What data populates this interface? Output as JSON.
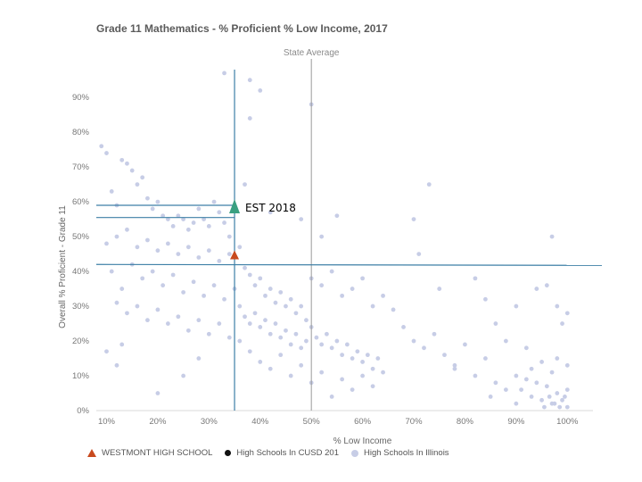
{
  "chart_data": {
    "type": "scatter",
    "title": "Grade 11 Mathematics - % Proficient % Low Income, 2017",
    "xlabel": "% Low Income",
    "ylabel": "Overall % Proficient - Grade 11",
    "xlim": [
      0.08,
      1.05
    ],
    "ylim": [
      0,
      0.98
    ],
    "x_ticks": [
      {
        "v": 0.1,
        "label": "10%"
      },
      {
        "v": 0.2,
        "label": "20%"
      },
      {
        "v": 0.3,
        "label": "30%"
      },
      {
        "v": 0.4,
        "label": "40%"
      },
      {
        "v": 0.5,
        "label": "50%"
      },
      {
        "v": 0.6,
        "label": "60%"
      },
      {
        "v": 0.7,
        "label": "70%"
      },
      {
        "v": 0.8,
        "label": "80%"
      },
      {
        "v": 0.9,
        "label": "90%"
      },
      {
        "v": 1.0,
        "label": "100%"
      }
    ],
    "y_ticks": [
      {
        "v": 0.0,
        "label": "0%"
      },
      {
        "v": 0.1,
        "label": "10%"
      },
      {
        "v": 0.2,
        "label": "20%"
      },
      {
        "v": 0.3,
        "label": "30%"
      },
      {
        "v": 0.4,
        "label": "40%"
      },
      {
        "v": 0.5,
        "label": "50%"
      },
      {
        "v": 0.6,
        "label": "60%"
      },
      {
        "v": 0.7,
        "label": "70%"
      },
      {
        "v": 0.8,
        "label": "80%"
      },
      {
        "v": 0.9,
        "label": "90%"
      }
    ],
    "state_average": {
      "label": "State Average",
      "x": 0.5
    },
    "reference_lines": {
      "vertical_x": 0.35,
      "horizontal_y": [
        0.59,
        0.555,
        0.42
      ]
    },
    "series": [
      {
        "name": "High Schools In Illinois",
        "color": "#c7cde6",
        "points": [
          [
            0.09,
            0.76
          ],
          [
            0.1,
            0.74
          ],
          [
            0.11,
            0.63
          ],
          [
            0.12,
            0.59
          ],
          [
            0.13,
            0.72
          ],
          [
            0.14,
            0.71
          ],
          [
            0.15,
            0.69
          ],
          [
            0.16,
            0.65
          ],
          [
            0.17,
            0.67
          ],
          [
            0.18,
            0.61
          ],
          [
            0.19,
            0.58
          ],
          [
            0.2,
            0.6
          ],
          [
            0.21,
            0.56
          ],
          [
            0.22,
            0.55
          ],
          [
            0.23,
            0.53
          ],
          [
            0.24,
            0.56
          ],
          [
            0.25,
            0.55
          ],
          [
            0.26,
            0.52
          ],
          [
            0.27,
            0.54
          ],
          [
            0.28,
            0.58
          ],
          [
            0.29,
            0.55
          ],
          [
            0.3,
            0.53
          ],
          [
            0.31,
            0.6
          ],
          [
            0.32,
            0.57
          ],
          [
            0.33,
            0.54
          ],
          [
            0.34,
            0.5
          ],
          [
            0.1,
            0.48
          ],
          [
            0.12,
            0.5
          ],
          [
            0.14,
            0.52
          ],
          [
            0.16,
            0.47
          ],
          [
            0.18,
            0.49
          ],
          [
            0.2,
            0.46
          ],
          [
            0.22,
            0.48
          ],
          [
            0.24,
            0.45
          ],
          [
            0.26,
            0.47
          ],
          [
            0.28,
            0.44
          ],
          [
            0.3,
            0.46
          ],
          [
            0.32,
            0.43
          ],
          [
            0.34,
            0.45
          ],
          [
            0.11,
            0.4
          ],
          [
            0.13,
            0.35
          ],
          [
            0.15,
            0.42
          ],
          [
            0.17,
            0.38
          ],
          [
            0.19,
            0.4
          ],
          [
            0.21,
            0.36
          ],
          [
            0.23,
            0.39
          ],
          [
            0.25,
            0.34
          ],
          [
            0.27,
            0.37
          ],
          [
            0.29,
            0.33
          ],
          [
            0.31,
            0.36
          ],
          [
            0.33,
            0.32
          ],
          [
            0.35,
            0.35
          ],
          [
            0.12,
            0.31
          ],
          [
            0.14,
            0.28
          ],
          [
            0.16,
            0.3
          ],
          [
            0.18,
            0.26
          ],
          [
            0.2,
            0.29
          ],
          [
            0.22,
            0.25
          ],
          [
            0.24,
            0.27
          ],
          [
            0.26,
            0.23
          ],
          [
            0.28,
            0.26
          ],
          [
            0.3,
            0.22
          ],
          [
            0.32,
            0.25
          ],
          [
            0.34,
            0.21
          ],
          [
            0.1,
            0.17
          ],
          [
            0.12,
            0.13
          ],
          [
            0.13,
            0.19
          ],
          [
            0.2,
            0.05
          ],
          [
            0.25,
            0.1
          ],
          [
            0.28,
            0.15
          ],
          [
            0.33,
            0.97
          ],
          [
            0.38,
            0.95
          ],
          [
            0.4,
            0.92
          ],
          [
            0.38,
            0.84
          ],
          [
            0.5,
            0.88
          ],
          [
            0.37,
            0.65
          ],
          [
            0.42,
            0.57
          ],
          [
            0.48,
            0.55
          ],
          [
            0.52,
            0.5
          ],
          [
            0.55,
            0.56
          ],
          [
            0.36,
            0.47
          ],
          [
            0.37,
            0.41
          ],
          [
            0.38,
            0.39
          ],
          [
            0.39,
            0.36
          ],
          [
            0.4,
            0.38
          ],
          [
            0.41,
            0.33
          ],
          [
            0.42,
            0.35
          ],
          [
            0.43,
            0.31
          ],
          [
            0.44,
            0.34
          ],
          [
            0.45,
            0.3
          ],
          [
            0.46,
            0.32
          ],
          [
            0.47,
            0.28
          ],
          [
            0.48,
            0.3
          ],
          [
            0.49,
            0.26
          ],
          [
            0.36,
            0.3
          ],
          [
            0.37,
            0.27
          ],
          [
            0.38,
            0.25
          ],
          [
            0.39,
            0.28
          ],
          [
            0.4,
            0.24
          ],
          [
            0.41,
            0.26
          ],
          [
            0.42,
            0.22
          ],
          [
            0.43,
            0.25
          ],
          [
            0.44,
            0.21
          ],
          [
            0.45,
            0.23
          ],
          [
            0.46,
            0.19
          ],
          [
            0.47,
            0.22
          ],
          [
            0.48,
            0.18
          ],
          [
            0.49,
            0.2
          ],
          [
            0.5,
            0.24
          ],
          [
            0.51,
            0.21
          ],
          [
            0.52,
            0.19
          ],
          [
            0.53,
            0.22
          ],
          [
            0.54,
            0.18
          ],
          [
            0.55,
            0.2
          ],
          [
            0.56,
            0.16
          ],
          [
            0.57,
            0.19
          ],
          [
            0.58,
            0.15
          ],
          [
            0.59,
            0.17
          ],
          [
            0.6,
            0.14
          ],
          [
            0.61,
            0.16
          ],
          [
            0.62,
            0.12
          ],
          [
            0.63,
            0.15
          ],
          [
            0.64,
            0.11
          ],
          [
            0.36,
            0.2
          ],
          [
            0.38,
            0.17
          ],
          [
            0.4,
            0.14
          ],
          [
            0.42,
            0.12
          ],
          [
            0.44,
            0.16
          ],
          [
            0.46,
            0.1
          ],
          [
            0.48,
            0.13
          ],
          [
            0.5,
            0.08
          ],
          [
            0.52,
            0.11
          ],
          [
            0.54,
            0.04
          ],
          [
            0.56,
            0.09
          ],
          [
            0.58,
            0.06
          ],
          [
            0.6,
            0.1
          ],
          [
            0.62,
            0.07
          ],
          [
            0.5,
            0.38
          ],
          [
            0.52,
            0.36
          ],
          [
            0.54,
            0.4
          ],
          [
            0.56,
            0.33
          ],
          [
            0.58,
            0.35
          ],
          [
            0.6,
            0.38
          ],
          [
            0.62,
            0.3
          ],
          [
            0.64,
            0.33
          ],
          [
            0.66,
            0.29
          ],
          [
            0.68,
            0.24
          ],
          [
            0.7,
            0.2
          ],
          [
            0.72,
            0.18
          ],
          [
            0.74,
            0.22
          ],
          [
            0.76,
            0.16
          ],
          [
            0.78,
            0.13
          ],
          [
            0.8,
            0.19
          ],
          [
            0.82,
            0.1
          ],
          [
            0.84,
            0.15
          ],
          [
            0.86,
            0.08
          ],
          [
            0.88,
            0.2
          ],
          [
            0.7,
            0.55
          ],
          [
            0.71,
            0.45
          ],
          [
            0.73,
            0.65
          ],
          [
            0.75,
            0.35
          ],
          [
            0.78,
            0.12
          ],
          [
            0.82,
            0.38
          ],
          [
            0.84,
            0.32
          ],
          [
            0.86,
            0.25
          ],
          [
            0.9,
            0.3
          ],
          [
            0.92,
            0.18
          ],
          [
            0.94,
            0.35
          ],
          [
            0.96,
            0.36
          ],
          [
            0.97,
            0.5
          ],
          [
            0.98,
            0.3
          ],
          [
            0.99,
            0.25
          ],
          [
            1.0,
            0.28
          ],
          [
            0.9,
            0.1
          ],
          [
            0.91,
            0.06
          ],
          [
            0.92,
            0.09
          ],
          [
            0.93,
            0.04
          ],
          [
            0.94,
            0.08
          ],
          [
            0.95,
            0.03
          ],
          [
            0.96,
            0.07
          ],
          [
            0.97,
            0.02
          ],
          [
            0.98,
            0.05
          ],
          [
            0.99,
            0.03
          ],
          [
            1.0,
            0.06
          ],
          [
            0.955,
            0.01
          ],
          [
            0.965,
            0.04
          ],
          [
            0.975,
            0.02
          ],
          [
            0.985,
            0.01
          ],
          [
            0.995,
            0.04
          ],
          [
            1.0,
            0.01
          ],
          [
            0.93,
            0.12
          ],
          [
            0.95,
            0.14
          ],
          [
            0.97,
            0.11
          ],
          [
            1.0,
            0.13
          ],
          [
            0.98,
            0.15
          ],
          [
            0.9,
            0.02
          ],
          [
            0.85,
            0.04
          ],
          [
            0.88,
            0.06
          ]
        ]
      },
      {
        "name": "High Schools In CUSD 201",
        "color": "#111111",
        "points": []
      },
      {
        "name": "WESTMONT HIGH SCHOOL",
        "color": "#c84a1e",
        "points": [
          [
            0.35,
            0.445
          ]
        ]
      }
    ],
    "annotations": [
      {
        "text": "EST 2018",
        "x": 0.35,
        "y": 0.585,
        "color": "#3aa080"
      }
    ],
    "legend": {
      "placement": "bottom-left"
    }
  },
  "legend_markers": {
    "westmont": "triangle-icon",
    "cusd": "dot-icon",
    "illinois": "dot-icon"
  }
}
